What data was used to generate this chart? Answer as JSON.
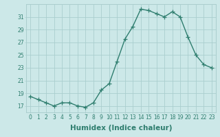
{
  "x": [
    0,
    1,
    2,
    3,
    4,
    5,
    6,
    7,
    8,
    9,
    10,
    11,
    12,
    13,
    14,
    15,
    16,
    17,
    18,
    19,
    20,
    21,
    22,
    23
  ],
  "y": [
    18.5,
    18.0,
    17.5,
    17.0,
    17.5,
    17.5,
    17.0,
    16.8,
    17.5,
    19.5,
    20.5,
    24.0,
    27.5,
    29.5,
    32.2,
    32.0,
    31.5,
    31.0,
    31.8,
    31.0,
    27.8,
    25.0,
    23.5,
    23.0
  ],
  "line_color": "#2e7d6e",
  "marker": "+",
  "markersize": 4,
  "linewidth": 1.0,
  "bg_color": "#cce8e8",
  "grid_color": "#aacece",
  "xlabel": "Humidex (Indice chaleur)",
  "ylabel": "",
  "xlim": [
    -0.5,
    23.5
  ],
  "ylim": [
    16.0,
    33.0
  ],
  "xticks": [
    0,
    1,
    2,
    3,
    4,
    5,
    6,
    7,
    8,
    9,
    10,
    11,
    12,
    13,
    14,
    15,
    16,
    17,
    18,
    19,
    20,
    21,
    22,
    23
  ],
  "yticks": [
    17,
    19,
    21,
    23,
    25,
    27,
    29,
    31
  ],
  "tick_fontsize": 5.5,
  "xlabel_fontsize": 7.5
}
